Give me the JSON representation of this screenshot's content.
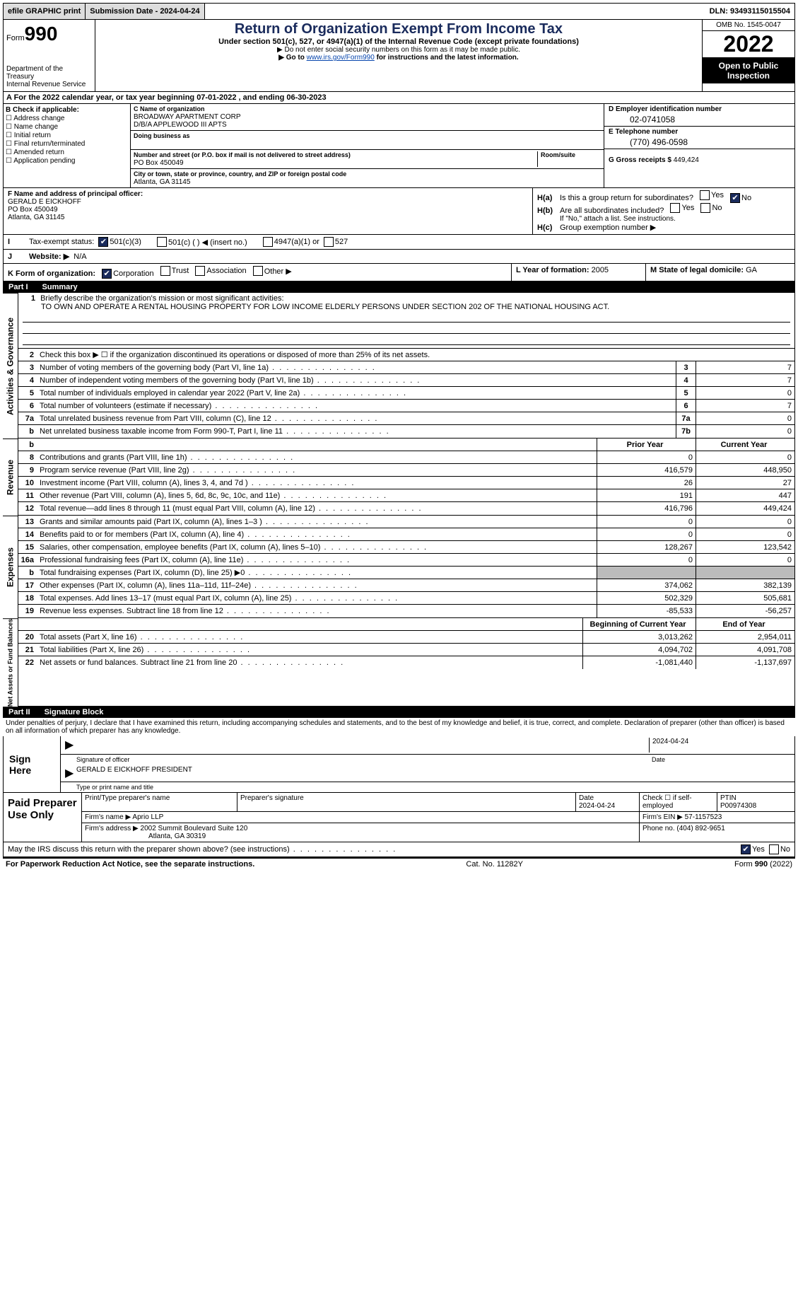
{
  "topbar": {
    "efile": "efile GRAPHIC print",
    "submission": "Submission Date - 2024-04-24",
    "dln": "DLN: 93493115015504"
  },
  "header": {
    "form_label": "Form",
    "form_num": "990",
    "dept": "Department of the Treasury",
    "irs": "Internal Revenue Service",
    "title": "Return of Organization Exempt From Income Tax",
    "subtitle": "Under section 501(c), 527, or 4947(a)(1) of the Internal Revenue Code (except private foundations)",
    "note1": "▶ Do not enter social security numbers on this form as it may be made public.",
    "note2_pre": "▶ Go to ",
    "note2_link": "www.irs.gov/Form990",
    "note2_post": " for instructions and the latest information.",
    "omb": "OMB No. 1545-0047",
    "year": "2022",
    "inspect": "Open to Public Inspection"
  },
  "A": {
    "text": "A For the 2022 calendar year, or tax year beginning 07-01-2022   , and ending 06-30-2023"
  },
  "B": {
    "title": "B Check if applicable:",
    "items": [
      "Address change",
      "Name change",
      "Initial return",
      "Final return/terminated",
      "Amended return",
      "Application pending"
    ]
  },
  "C": {
    "name_label": "C Name of organization",
    "name1": "BROADWAY APARTMENT CORP",
    "name2": "D/B/A APPLEWOOD III APTS",
    "dba": "Doing business as",
    "street_label": "Number and street (or P.O. box if mail is not delivered to street address)",
    "room": "Room/suite",
    "street": "PO Box 450049",
    "city_label": "City or town, state or province, country, and ZIP or foreign postal code",
    "city": "Atlanta, GA  31145"
  },
  "D": {
    "label": "D Employer identification number",
    "val": "02-0741058"
  },
  "E": {
    "label": "E Telephone number",
    "val": "(770) 496-0598"
  },
  "G": {
    "label": "G Gross receipts $",
    "val": "449,424"
  },
  "F": {
    "label": "F  Name and address of principal officer:",
    "name": "GERALD E EICKHOFF",
    "addr1": "PO Box 450049",
    "addr2": "Atlanta, GA  31145"
  },
  "H": {
    "a": "Is this a group return for subordinates?",
    "b": "Are all subordinates included?",
    "b_note": "If \"No,\" attach a list. See instructions.",
    "c": "Group exemption number ▶"
  },
  "I": {
    "label": "Tax-exempt status:",
    "opts": [
      "501(c)(3)",
      "501(c) (  ) ◀ (insert no.)",
      "4947(a)(1) or",
      "527"
    ]
  },
  "J": {
    "label": "Website: ▶",
    "val": "N/A"
  },
  "K": {
    "label": "K Form of organization:",
    "opts": [
      "Corporation",
      "Trust",
      "Association",
      "Other ▶"
    ]
  },
  "L": {
    "label": "L Year of formation:",
    "val": "2005"
  },
  "M": {
    "label": "M State of legal domicile:",
    "val": "GA"
  },
  "part1": {
    "title": "Part I",
    "subtitle": "Summary",
    "line1": "Briefly describe the organization's mission or most significant activities:",
    "mission": "TO OWN AND OPERATE A RENTAL HOUSING PROPERTY FOR LOW INCOME ELDERLY PERSONS UNDER SECTION 202 OF THE NATIONAL HOUSING ACT.",
    "line2": "Check this box ▶ ☐ if the organization discontinued its operations or disposed of more than 25% of its net assets.",
    "rows_gov": [
      {
        "n": "3",
        "t": "Number of voting members of the governing body (Part VI, line 1a)",
        "b": "3",
        "v": "7"
      },
      {
        "n": "4",
        "t": "Number of independent voting members of the governing body (Part VI, line 1b)",
        "b": "4",
        "v": "7"
      },
      {
        "n": "5",
        "t": "Total number of individuals employed in calendar year 2022 (Part V, line 2a)",
        "b": "5",
        "v": "0"
      },
      {
        "n": "6",
        "t": "Total number of volunteers (estimate if necessary)",
        "b": "6",
        "v": "7"
      },
      {
        "n": "7a",
        "t": "Total unrelated business revenue from Part VIII, column (C), line 12",
        "b": "7a",
        "v": "0"
      },
      {
        "n": "b",
        "t": "Net unrelated business taxable income from Form 990-T, Part I, line 11",
        "b": "7b",
        "v": "0"
      }
    ],
    "hdr_prior": "Prior Year",
    "hdr_curr": "Current Year",
    "rows_rev": [
      {
        "n": "8",
        "t": "Contributions and grants (Part VIII, line 1h)",
        "p": "0",
        "c": "0"
      },
      {
        "n": "9",
        "t": "Program service revenue (Part VIII, line 2g)",
        "p": "416,579",
        "c": "448,950"
      },
      {
        "n": "10",
        "t": "Investment income (Part VIII, column (A), lines 3, 4, and 7d )",
        "p": "26",
        "c": "27"
      },
      {
        "n": "11",
        "t": "Other revenue (Part VIII, column (A), lines 5, 6d, 8c, 9c, 10c, and 11e)",
        "p": "191",
        "c": "447"
      },
      {
        "n": "12",
        "t": "Total revenue—add lines 8 through 11 (must equal Part VIII, column (A), line 12)",
        "p": "416,796",
        "c": "449,424"
      }
    ],
    "rows_exp": [
      {
        "n": "13",
        "t": "Grants and similar amounts paid (Part IX, column (A), lines 1–3 )",
        "p": "0",
        "c": "0"
      },
      {
        "n": "14",
        "t": "Benefits paid to or for members (Part IX, column (A), line 4)",
        "p": "0",
        "c": "0"
      },
      {
        "n": "15",
        "t": "Salaries, other compensation, employee benefits (Part IX, column (A), lines 5–10)",
        "p": "128,267",
        "c": "123,542"
      },
      {
        "n": "16a",
        "t": "Professional fundraising fees (Part IX, column (A), line 11e)",
        "p": "0",
        "c": "0"
      },
      {
        "n": "b",
        "t": "Total fundraising expenses (Part IX, column (D), line 25) ▶0",
        "p": "",
        "c": "",
        "gray": true
      },
      {
        "n": "17",
        "t": "Other expenses (Part IX, column (A), lines 11a–11d, 11f–24e)",
        "p": "374,062",
        "c": "382,139"
      },
      {
        "n": "18",
        "t": "Total expenses. Add lines 13–17 (must equal Part IX, column (A), line 25)",
        "p": "502,329",
        "c": "505,681"
      },
      {
        "n": "19",
        "t": "Revenue less expenses. Subtract line 18 from line 12",
        "p": "-85,533",
        "c": "-56,257"
      }
    ],
    "hdr_beg": "Beginning of Current Year",
    "hdr_end": "End of Year",
    "rows_net": [
      {
        "n": "20",
        "t": "Total assets (Part X, line 16)",
        "p": "3,013,262",
        "c": "2,954,011"
      },
      {
        "n": "21",
        "t": "Total liabilities (Part X, line 26)",
        "p": "4,094,702",
        "c": "4,091,708"
      },
      {
        "n": "22",
        "t": "Net assets or fund balances. Subtract line 21 from line 20",
        "p": "-1,081,440",
        "c": "-1,137,697"
      }
    ]
  },
  "sides": {
    "gov": "Activities & Governance",
    "rev": "Revenue",
    "exp": "Expenses",
    "net": "Net Assets or Fund Balances"
  },
  "part2": {
    "title": "Part II",
    "subtitle": "Signature Block",
    "penalty": "Under penalties of perjury, I declare that I have examined this return, including accompanying schedules and statements, and to the best of my knowledge and belief, it is true, correct, and complete. Declaration of preparer (other than officer) is based on all information of which preparer has any knowledge.",
    "sign_here": "Sign Here",
    "sig_officer": "Signature of officer",
    "sig_date": "2024-04-24",
    "sig_date_lbl": "Date",
    "sig_name": "GERALD E EICKHOFF  PRESIDENT",
    "sig_name_lbl": "Type or print name and title",
    "paid": "Paid Preparer Use Only",
    "prep_name_lbl": "Print/Type preparer's name",
    "prep_sig_lbl": "Preparer's signature",
    "prep_date_lbl": "Date",
    "prep_date": "2024-04-24",
    "prep_check": "Check ☐ if self-employed",
    "ptin_lbl": "PTIN",
    "ptin": "P00974308",
    "firm_name_lbl": "Firm's name    ▶",
    "firm_name": "Aprio LLP",
    "firm_ein_lbl": "Firm's EIN ▶",
    "firm_ein": "57-1157523",
    "firm_addr_lbl": "Firm's address ▶",
    "firm_addr1": "2002 Summit Boulevard Suite 120",
    "firm_addr2": "Atlanta, GA  30319",
    "phone_lbl": "Phone no.",
    "phone": "(404) 892-9651",
    "discuss": "May the IRS discuss this return with the preparer shown above? (see instructions)"
  },
  "footer": {
    "left": "For Paperwork Reduction Act Notice, see the separate instructions.",
    "mid": "Cat. No. 11282Y",
    "right": "Form 990 (2022)"
  }
}
